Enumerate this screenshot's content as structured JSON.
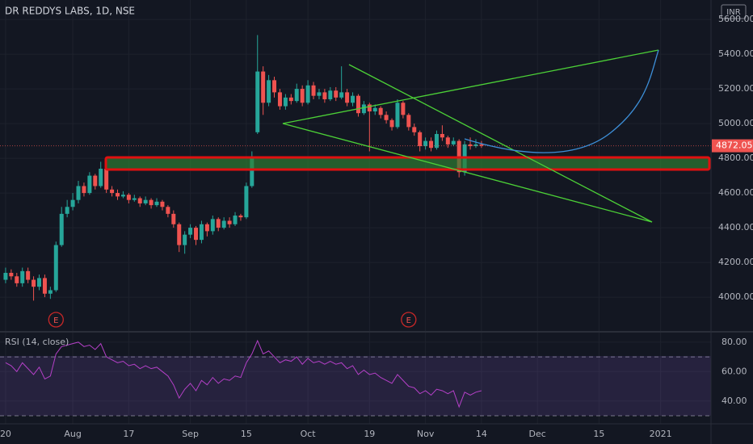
{
  "header": {
    "title": "DR REDDYS LABS, 1D, NSE",
    "currency": "INR"
  },
  "chart_data": [
    {
      "type": "candlestick",
      "xlim": [
        -1,
        126
      ],
      "xticks": [
        {
          "value": 0,
          "label": "20"
        },
        {
          "value": 12,
          "label": "Aug"
        },
        {
          "value": 22,
          "label": "17"
        },
        {
          "value": 33,
          "label": "Sep"
        },
        {
          "value": 43,
          "label": "15"
        },
        {
          "value": 54,
          "label": "Oct"
        },
        {
          "value": 65,
          "label": "19"
        },
        {
          "value": 75,
          "label": "Nov"
        },
        {
          "value": 85,
          "label": "14"
        },
        {
          "value": 95,
          "label": "Dec"
        },
        {
          "value": 106,
          "label": "15"
        },
        {
          "value": 117,
          "label": "2021"
        }
      ],
      "ylim": [
        3805,
        5712
      ],
      "yticks": [
        {
          "value": 4000,
          "label": "4000.00"
        },
        {
          "value": 4200,
          "label": "4200.00"
        },
        {
          "value": 4400,
          "label": "4400.00"
        },
        {
          "value": 4600,
          "label": "4600.00"
        },
        {
          "value": 4800,
          "label": "4800.00"
        },
        {
          "value": 5000,
          "label": "5000.00"
        },
        {
          "value": 5200,
          "label": "5200.00"
        },
        {
          "value": 5400,
          "label": "5400.00"
        },
        {
          "value": 5600,
          "label": "5600.00"
        }
      ],
      "up_color": "#26a69a",
      "down_color": "#ef5350",
      "open": [
        4100,
        4140,
        4120,
        4080,
        4150,
        4100,
        4060,
        4110,
        4020,
        4040,
        4300,
        4480,
        4520,
        4560,
        4640,
        4600,
        4700,
        4640,
        4740,
        4620,
        4600,
        4580,
        4590,
        4560,
        4570,
        4540,
        4560,
        4530,
        4550,
        4520,
        4480,
        4420,
        4300,
        4360,
        4400,
        4330,
        4420,
        4380,
        4450,
        4400,
        4440,
        4420,
        4470,
        4460,
        4640,
        4950,
        5300,
        5120,
        5250,
        5180,
        5100,
        5150,
        5130,
        5200,
        5120,
        5220,
        5160,
        5180,
        5140,
        5190,
        5150,
        5180,
        5120,
        5160,
        5060,
        5110,
        5070,
        5090,
        5050,
        5020,
        4980,
        5120,
        5050,
        4980,
        4950,
        4870,
        4900,
        4860,
        4940,
        4920,
        4880,
        4900,
        4720,
        4880,
        4870,
        4880
      ],
      "high": [
        4170,
        4160,
        4140,
        4170,
        4170,
        4120,
        4130,
        4130,
        4060,
        4320,
        4520,
        4560,
        4600,
        4670,
        4660,
        4720,
        4710,
        4780,
        4750,
        4640,
        4620,
        4610,
        4600,
        4590,
        4580,
        4580,
        4570,
        4570,
        4560,
        4530,
        4500,
        4430,
        4380,
        4420,
        4410,
        4440,
        4430,
        4470,
        4460,
        4460,
        4460,
        4490,
        4480,
        4660,
        4840,
        5510,
        5330,
        5280,
        5270,
        5200,
        5170,
        5170,
        5230,
        5220,
        5250,
        5240,
        5200,
        5200,
        5210,
        5210,
        5330,
        5200,
        5180,
        5170,
        5130,
        5120,
        5110,
        5100,
        5070,
        5030,
        5140,
        5130,
        5060,
        5000,
        4960,
        4920,
        4920,
        4960,
        4990,
        4930,
        4920,
        4910,
        4900,
        4920,
        4910,
        4900
      ],
      "low": [
        4080,
        4100,
        4060,
        4060,
        4080,
        3980,
        4040,
        4000,
        3990,
        4030,
        4290,
        4460,
        4500,
        4540,
        4580,
        4590,
        4620,
        4630,
        4600,
        4580,
        4560,
        4570,
        4540,
        4550,
        4520,
        4530,
        4510,
        4520,
        4500,
        4460,
        4400,
        4260,
        4250,
        4340,
        4300,
        4310,
        4350,
        4360,
        4380,
        4390,
        4400,
        4410,
        4440,
        4450,
        4630,
        4940,
        5050,
        5100,
        5150,
        5080,
        5080,
        5110,
        5120,
        5100,
        5110,
        5140,
        5140,
        5120,
        5130,
        5130,
        5140,
        5100,
        5100,
        5040,
        5050,
        4840,
        5050,
        5030,
        5000,
        4960,
        4970,
        5030,
        4960,
        4930,
        4840,
        4850,
        4840,
        4850,
        4900,
        4860,
        4870,
        4690,
        4700,
        4850,
        4860,
        4860
      ],
      "close": [
        4140,
        4120,
        4080,
        4150,
        4100,
        4060,
        4110,
        4020,
        4040,
        4300,
        4480,
        4520,
        4560,
        4640,
        4600,
        4700,
        4640,
        4740,
        4620,
        4600,
        4580,
        4590,
        4560,
        4570,
        4540,
        4560,
        4530,
        4550,
        4520,
        4480,
        4420,
        4300,
        4360,
        4400,
        4330,
        4420,
        4380,
        4450,
        4400,
        4440,
        4420,
        4470,
        4460,
        4640,
        4810,
        5300,
        5120,
        5250,
        5180,
        5100,
        5150,
        5130,
        5200,
        5120,
        5220,
        5160,
        5180,
        5140,
        5190,
        5150,
        5180,
        5120,
        5160,
        5060,
        5110,
        5070,
        5090,
        5050,
        5020,
        4980,
        5120,
        5050,
        4980,
        4950,
        4870,
        4900,
        4860,
        4940,
        4920,
        4880,
        4900,
        4720,
        4880,
        4870,
        4880,
        4872.05
      ],
      "markers": [
        {
          "x": 9,
          "label": "E"
        },
        {
          "x": 72,
          "label": "E"
        }
      ]
    },
    {
      "type": "line",
      "title": "RSI (14, close)",
      "color": "#b540c8",
      "ylim": [
        24.5,
        86.5
      ],
      "yticks": [
        {
          "value": 40,
          "label": "40.00"
        },
        {
          "value": 60,
          "label": "60.00"
        },
        {
          "value": 80,
          "label": "80.00"
        }
      ],
      "band": [
        30,
        70
      ],
      "values": [
        66,
        64,
        60,
        66,
        62,
        58,
        63,
        55,
        57,
        72,
        77,
        78,
        79,
        80,
        77,
        78,
        75,
        79,
        70,
        68,
        66,
        67,
        64,
        65,
        62,
        64,
        62,
        63,
        60,
        57,
        51,
        42,
        48,
        52,
        47,
        54,
        51,
        56,
        52,
        55,
        54,
        57,
        56,
        66,
        72,
        81,
        72,
        74,
        70,
        66,
        68,
        67,
        70,
        65,
        69,
        66,
        67,
        65,
        67,
        65,
        66,
        62,
        64,
        58,
        61,
        58,
        59,
        56,
        54,
        52,
        58,
        54,
        50,
        49,
        45,
        47,
        44,
        48,
        47,
        45,
        47,
        36,
        46,
        44,
        46,
        47
      ]
    }
  ]
}
